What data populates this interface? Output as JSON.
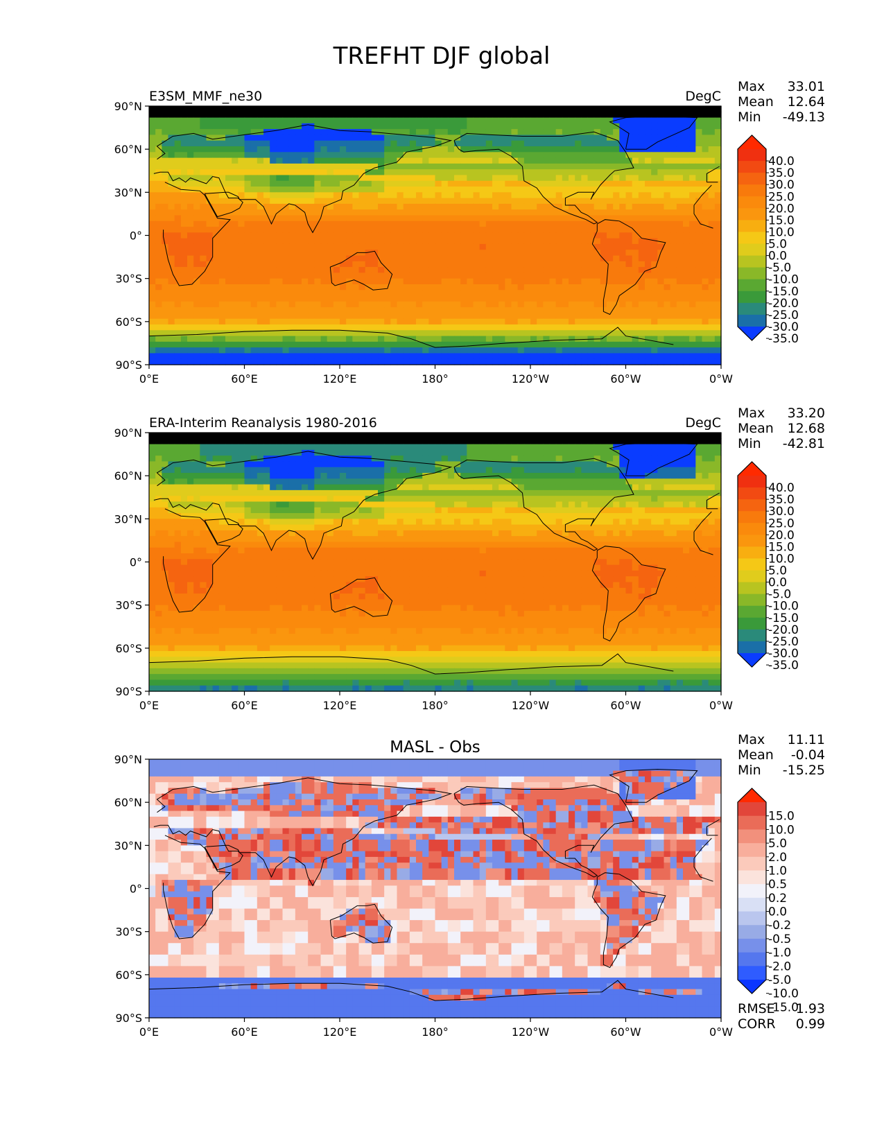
{
  "title": "TREFHT DJF global",
  "lat_labels": [
    "90°N",
    "60°N",
    "30°N",
    "0°",
    "30°S",
    "60°S",
    "90°S"
  ],
  "lon_labels": [
    "0°E",
    "60°E",
    "120°E",
    "180°",
    "120°W",
    "60°W",
    "0°W"
  ],
  "panels": [
    {
      "left_title": "E3SM_MMF_ne30",
      "center_title": "",
      "units": "DegC",
      "stats": [
        {
          "label": "Max",
          "value": "33.01"
        },
        {
          "label": "Mean",
          "value": "12.64"
        },
        {
          "label": "Min",
          "value": "-49.13"
        }
      ],
      "colorbar_levels": [
        "40.0",
        "35.0",
        "30.0",
        "25.0",
        "20.0",
        "15.0",
        "10.0",
        "5.0",
        "0.0",
        "-5.0",
        "-10.0",
        "-15.0",
        "-20.0",
        "-25.0",
        "-30.0",
        "-35.0"
      ],
      "field": "model",
      "extra_stats": []
    },
    {
      "left_title": "ERA-Interim Reanalysis 1980-2016",
      "center_title": "",
      "units": "DegC",
      "stats": [
        {
          "label": "Max",
          "value": "33.20"
        },
        {
          "label": "Mean",
          "value": "12.68"
        },
        {
          "label": "Min",
          "value": "-42.81"
        }
      ],
      "colorbar_levels": [
        "40.0",
        "35.0",
        "30.0",
        "25.0",
        "20.0",
        "15.0",
        "10.0",
        "5.0",
        "0.0",
        "-5.0",
        "-10.0",
        "-15.0",
        "-20.0",
        "-25.0",
        "-30.0",
        "-35.0"
      ],
      "field": "obs",
      "extra_stats": []
    },
    {
      "left_title": "",
      "center_title": "MASL - Obs",
      "units": "",
      "stats": [
        {
          "label": "Max",
          "value": "11.11"
        },
        {
          "label": "Mean",
          "value": "-0.04"
        },
        {
          "label": "Min",
          "value": "-15.25"
        }
      ],
      "colorbar_levels": [
        "15.0",
        "10.0",
        "5.0",
        "2.0",
        "1.0",
        "0.5",
        "0.2",
        "0.0",
        "-0.2",
        "-0.5",
        "-1.0",
        "-2.0",
        "-5.0",
        "-10.0",
        "-15.0"
      ],
      "field": "diff",
      "extra_stats": [
        {
          "label": "RMSE",
          "value": "1.93"
        },
        {
          "label": "CORR",
          "value": "0.99"
        }
      ]
    }
  ],
  "colors": {
    "temperature": [
      "#0a3cff",
      "#1a6fa8",
      "#2a8a7a",
      "#3a9a3a",
      "#5aa832",
      "#8ab828",
      "#b8c420",
      "#e0cc1c",
      "#f5c816",
      "#f8ae10",
      "#fa960e",
      "#fa8a0c",
      "#f87a0c",
      "#f56410",
      "#f24a12",
      "#f03010",
      "#ff2a00"
    ],
    "difference": [
      "#0b36ff",
      "#2f5cff",
      "#5577ee",
      "#7790ea",
      "#98abe6",
      "#bac6ee",
      "#d9e0f5",
      "#f2f2fa",
      "#fbe3dc",
      "#fbcabb",
      "#f8ae9c",
      "#f2907c",
      "#ea6c58",
      "#e2463a",
      "#ff2a00"
    ]
  }
}
